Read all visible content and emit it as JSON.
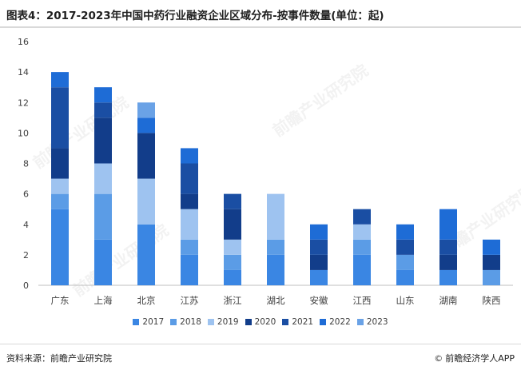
{
  "title": "图表4：2017-2023年中国中药行业融资企业区域分布-按事件数量(单位：起)",
  "footer": {
    "source": "资料来源：前瞻产业研究院",
    "brand_icon": "©",
    "brand": "前瞻经济学人APP"
  },
  "watermark_text": "前瞻产业研究院",
  "colors": {
    "2017": "#3a86e3",
    "2018": "#5b9ce6",
    "2019": "#9ec3f0",
    "2020": "#123d8a",
    "2021": "#1a4ea3",
    "2022": "#1e6cd6",
    "2023": "#6aa2e6"
  },
  "chart_data": {
    "type": "bar",
    "stacked": true,
    "title": "图表4：2017-2023年中国中药行业融资企业区域分布-按事件数量(单位：起)",
    "categories": [
      "广东",
      "上海",
      "北京",
      "江苏",
      "浙江",
      "湖北",
      "安徽",
      "江西",
      "山东",
      "湖南",
      "陕西"
    ],
    "series": [
      {
        "name": "2017",
        "values": [
          5,
          3,
          4,
          2,
          1,
          2,
          1,
          2,
          1,
          1,
          0
        ]
      },
      {
        "name": "2018",
        "values": [
          1,
          3,
          0,
          1,
          1,
          1,
          0,
          1,
          1,
          0,
          1
        ]
      },
      {
        "name": "2019",
        "values": [
          1,
          2,
          3,
          2,
          1,
          3,
          0,
          1,
          0,
          0,
          0
        ]
      },
      {
        "name": "2020",
        "values": [
          2,
          3,
          3,
          1,
          2,
          0,
          1,
          0,
          0,
          1,
          1
        ]
      },
      {
        "name": "2021",
        "values": [
          4,
          1,
          0,
          2,
          1,
          0,
          1,
          1,
          1,
          1,
          0
        ]
      },
      {
        "name": "2022",
        "values": [
          1,
          1,
          1,
          1,
          0,
          0,
          1,
          0,
          1,
          2,
          1
        ]
      },
      {
        "name": "2023",
        "values": [
          0,
          0,
          1,
          0,
          0,
          0,
          0,
          0,
          0,
          0,
          0
        ]
      }
    ],
    "ylim": [
      0,
      16
    ],
    "yticks": [
      0,
      2,
      4,
      6,
      8,
      10,
      12,
      14,
      16
    ],
    "legend_position": "bottom",
    "grid": false
  }
}
